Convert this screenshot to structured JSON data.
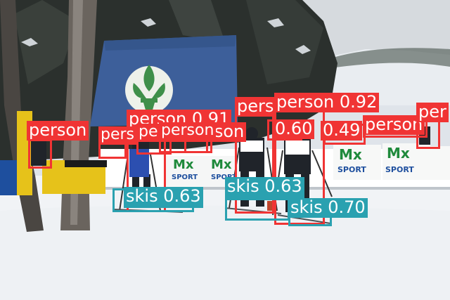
{
  "image": {
    "description_colors": {
      "sky": "#d4d8dc",
      "snow": "#f2f4f7",
      "tree_dark": "#2a2f2c",
      "banner_blue": "#3d5f9a",
      "fleur_green": "#3f8f4a",
      "ad_green": "#1f8a3c",
      "ad_blue": "#1e4f9e",
      "ad_yellow": "#e6c21a"
    }
  },
  "detections": [
    {
      "label": "person 0.92",
      "class": "person",
      "color": "#f03434"
    },
    {
      "label": "person 0.91",
      "class": "person",
      "color": "#f03434"
    },
    {
      "label": "pers",
      "class": "person",
      "color": "#f03434"
    },
    {
      "label": "person",
      "class": "person",
      "color": "#f03434"
    },
    {
      "label": "person",
      "class": "person",
      "color": "#f03434"
    },
    {
      "label": "pers",
      "class": "person",
      "color": "#f03434"
    },
    {
      "label": "person",
      "class": "person",
      "color": "#f03434"
    },
    {
      "label": "person",
      "class": "person",
      "color": "#f03434"
    },
    {
      "label": "0.60",
      "class": "person",
      "color": "#f03434"
    },
    {
      "label": "0.49",
      "class": "person",
      "color": "#f03434"
    },
    {
      "label": "person",
      "class": "person",
      "color": "#f03434"
    },
    {
      "label": "per",
      "class": "person",
      "color": "#f03434"
    },
    {
      "label": "skis 0.63",
      "class": "skis",
      "color": "#2aa1b0"
    },
    {
      "label": "skis 0.63",
      "class": "skis",
      "color": "#2aa1b0"
    },
    {
      "label": "skis 0.70",
      "class": "skis",
      "color": "#2aa1b0"
    }
  ],
  "signage": {
    "ad_brand": "Mx",
    "ad_word": "SPORT"
  }
}
